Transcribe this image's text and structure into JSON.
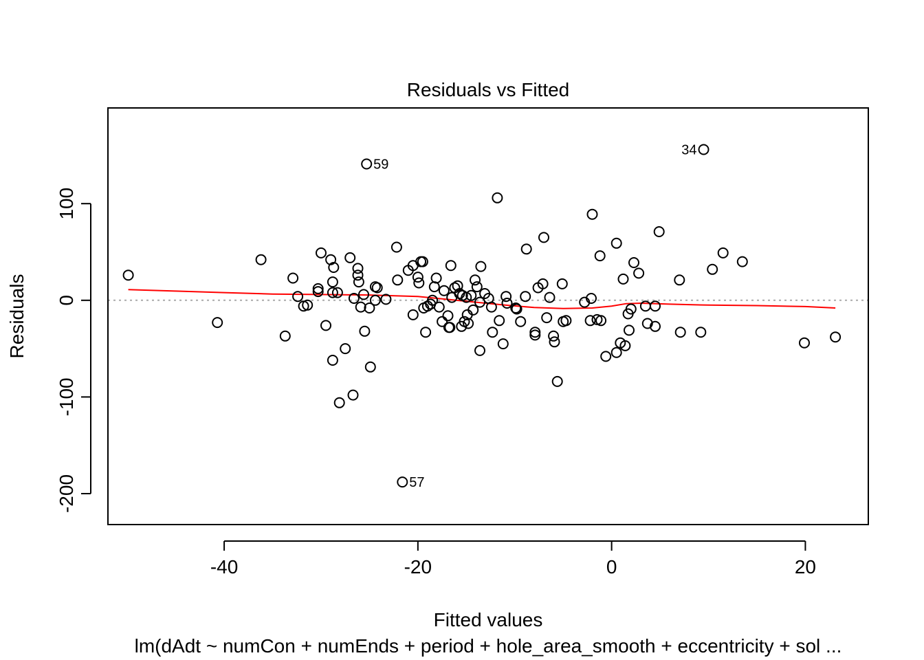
{
  "chart_data": {
    "type": "scatter",
    "title": "Residuals vs Fitted",
    "xlabel": "Fitted values",
    "ylabel": "Residuals",
    "subtitle": "lm(dAdt ~ numCon + numEnds + period + hole_area_smooth + eccentricity + sol ...",
    "xlim": [
      -52,
      26.5
    ],
    "ylim": [
      -232,
      199
    ],
    "x_ticks": [
      -40,
      -20,
      0,
      20
    ],
    "y_ticks": [
      -200,
      -100,
      0,
      100
    ],
    "x_tick_labels": [
      "-40",
      "-20",
      "0",
      "20"
    ],
    "y_tick_labels": [
      "-200",
      "-100",
      "0",
      "100"
    ],
    "reference_line": {
      "y": 0,
      "style": "dotted",
      "color": "#aaaaaa"
    },
    "smooth_color": "#ff0000",
    "point_color": "#000000",
    "points": [
      {
        "x": -49.9,
        "y": 26
      },
      {
        "x": -40.7,
        "y": -23
      },
      {
        "x": -36.2,
        "y": 42
      },
      {
        "x": -33.7,
        "y": -37
      },
      {
        "x": -32.9,
        "y": 23
      },
      {
        "x": -32.4,
        "y": 4
      },
      {
        "x": -31.8,
        "y": -6
      },
      {
        "x": -31.4,
        "y": -5
      },
      {
        "x": -30.3,
        "y": 12
      },
      {
        "x": -30.3,
        "y": 9
      },
      {
        "x": -30.0,
        "y": 49
      },
      {
        "x": -29.5,
        "y": -26
      },
      {
        "x": -29.0,
        "y": 42
      },
      {
        "x": -28.8,
        "y": 19
      },
      {
        "x": -28.7,
        "y": 34
      },
      {
        "x": -28.8,
        "y": 8
      },
      {
        "x": -28.3,
        "y": 8
      },
      {
        "x": -28.8,
        "y": -62
      },
      {
        "x": -28.1,
        "y": -106
      },
      {
        "x": -27.5,
        "y": -50
      },
      {
        "x": -27.0,
        "y": 44
      },
      {
        "x": -26.7,
        "y": -98
      },
      {
        "x": -26.6,
        "y": 2
      },
      {
        "x": -26.2,
        "y": 33
      },
      {
        "x": -26.2,
        "y": 26
      },
      {
        "x": -26.1,
        "y": 19
      },
      {
        "x": -25.9,
        "y": -7
      },
      {
        "x": -25.6,
        "y": 6
      },
      {
        "x": -25.5,
        "y": -32
      },
      {
        "x": -25.3,
        "y": 141
      },
      {
        "x": -25.0,
        "y": -8
      },
      {
        "x": -24.9,
        "y": -69
      },
      {
        "x": -24.4,
        "y": 14
      },
      {
        "x": -24.2,
        "y": 13
      },
      {
        "x": -24.4,
        "y": 0
      },
      {
        "x": -23.3,
        "y": 1
      },
      {
        "x": -22.2,
        "y": 55
      },
      {
        "x": -22.1,
        "y": 21
      },
      {
        "x": -21.6,
        "y": -188
      },
      {
        "x": -21.0,
        "y": 31
      },
      {
        "x": -20.5,
        "y": 36
      },
      {
        "x": -20.5,
        "y": -15
      },
      {
        "x": -20.0,
        "y": 24
      },
      {
        "x": -19.9,
        "y": 18
      },
      {
        "x": -19.7,
        "y": 40
      },
      {
        "x": -19.5,
        "y": 40
      },
      {
        "x": -19.4,
        "y": -8
      },
      {
        "x": -19.2,
        "y": -33
      },
      {
        "x": -19.0,
        "y": -6
      },
      {
        "x": -18.7,
        "y": -4
      },
      {
        "x": -18.5,
        "y": 0
      },
      {
        "x": -18.3,
        "y": 14
      },
      {
        "x": -18.1,
        "y": 23
      },
      {
        "x": -17.8,
        "y": -7
      },
      {
        "x": -17.5,
        "y": -22
      },
      {
        "x": -17.3,
        "y": 10
      },
      {
        "x": -16.9,
        "y": -16
      },
      {
        "x": -16.8,
        "y": -28
      },
      {
        "x": -16.7,
        "y": -28
      },
      {
        "x": -16.6,
        "y": 36
      },
      {
        "x": -16.5,
        "y": 3
      },
      {
        "x": -16.2,
        "y": 13
      },
      {
        "x": -15.9,
        "y": 15
      },
      {
        "x": -15.7,
        "y": 7
      },
      {
        "x": -15.5,
        "y": -27
      },
      {
        "x": -15.4,
        "y": 5
      },
      {
        "x": -15.2,
        "y": -22
      },
      {
        "x": -15.0,
        "y": 3
      },
      {
        "x": -14.9,
        "y": -15
      },
      {
        "x": -14.8,
        "y": -24
      },
      {
        "x": -14.5,
        "y": 5
      },
      {
        "x": -14.3,
        "y": -10
      },
      {
        "x": -14.1,
        "y": 21
      },
      {
        "x": -13.9,
        "y": 14
      },
      {
        "x": -13.6,
        "y": -2
      },
      {
        "x": -13.5,
        "y": 35
      },
      {
        "x": -13.6,
        "y": -52
      },
      {
        "x": -13.1,
        "y": 7
      },
      {
        "x": -12.7,
        "y": 2
      },
      {
        "x": -12.4,
        "y": -7
      },
      {
        "x": -12.3,
        "y": -33
      },
      {
        "x": -11.8,
        "y": 106
      },
      {
        "x": -11.6,
        "y": -21
      },
      {
        "x": -11.2,
        "y": -45
      },
      {
        "x": -10.9,
        "y": 4
      },
      {
        "x": -10.8,
        "y": -3
      },
      {
        "x": -9.9,
        "y": -8
      },
      {
        "x": -9.8,
        "y": -9
      },
      {
        "x": -9.4,
        "y": -22
      },
      {
        "x": -8.9,
        "y": 4
      },
      {
        "x": -8.8,
        "y": 53
      },
      {
        "x": -7.9,
        "y": -33
      },
      {
        "x": -7.9,
        "y": -36
      },
      {
        "x": -7.6,
        "y": 13
      },
      {
        "x": -7.1,
        "y": 17
      },
      {
        "x": -7.0,
        "y": 65
      },
      {
        "x": -6.7,
        "y": -18
      },
      {
        "x": -6.4,
        "y": 3
      },
      {
        "x": -6.0,
        "y": -37
      },
      {
        "x": -5.9,
        "y": -43
      },
      {
        "x": -5.6,
        "y": -84
      },
      {
        "x": -5.1,
        "y": 17
      },
      {
        "x": -5.0,
        "y": -22
      },
      {
        "x": -4.7,
        "y": -21
      },
      {
        "x": -2.8,
        "y": -2
      },
      {
        "x": -2.2,
        "y": -21
      },
      {
        "x": -2.1,
        "y": 2
      },
      {
        "x": -2.0,
        "y": 89
      },
      {
        "x": -1.5,
        "y": -20
      },
      {
        "x": -1.2,
        "y": 46
      },
      {
        "x": -1.1,
        "y": -21
      },
      {
        "x": -0.6,
        "y": -58
      },
      {
        "x": 0.5,
        "y": 59
      },
      {
        "x": 0.5,
        "y": -54
      },
      {
        "x": 0.9,
        "y": -44
      },
      {
        "x": 1.2,
        "y": 22
      },
      {
        "x": 1.4,
        "y": -47
      },
      {
        "x": 1.7,
        "y": -14
      },
      {
        "x": 1.8,
        "y": -31
      },
      {
        "x": 2.0,
        "y": -9
      },
      {
        "x": 2.3,
        "y": 39
      },
      {
        "x": 2.8,
        "y": 28
      },
      {
        "x": 3.5,
        "y": -6
      },
      {
        "x": 3.7,
        "y": -24
      },
      {
        "x": 4.5,
        "y": -6
      },
      {
        "x": 4.5,
        "y": -27
      },
      {
        "x": 4.9,
        "y": 71
      },
      {
        "x": 7.0,
        "y": 21
      },
      {
        "x": 7.1,
        "y": -33
      },
      {
        "x": 9.2,
        "y": -33
      },
      {
        "x": 9.5,
        "y": 156
      },
      {
        "x": 10.4,
        "y": 32
      },
      {
        "x": 11.5,
        "y": 49
      },
      {
        "x": 13.5,
        "y": 40
      },
      {
        "x": 19.9,
        "y": -44
      },
      {
        "x": 23.1,
        "y": -38
      }
    ],
    "labeled_points": [
      {
        "label": "59",
        "x": -25.3,
        "y": 141,
        "side": "right"
      },
      {
        "label": "57",
        "x": -21.6,
        "y": -188,
        "side": "right"
      },
      {
        "label": "34",
        "x": 9.5,
        "y": 156,
        "side": "left"
      }
    ],
    "smooth_line": [
      {
        "x": -49.9,
        "y": 11
      },
      {
        "x": -45,
        "y": 9.5
      },
      {
        "x": -40,
        "y": 8
      },
      {
        "x": -35,
        "y": 6.5
      },
      {
        "x": -30,
        "y": 6
      },
      {
        "x": -25,
        "y": 5.5
      },
      {
        "x": -20,
        "y": 4
      },
      {
        "x": -17,
        "y": 1
      },
      {
        "x": -14,
        "y": -2
      },
      {
        "x": -11,
        "y": -5
      },
      {
        "x": -8,
        "y": -7.5
      },
      {
        "x": -5,
        "y": -8.5
      },
      {
        "x": -2,
        "y": -8
      },
      {
        "x": 0,
        "y": -6
      },
      {
        "x": 1.5,
        "y": -3.5
      },
      {
        "x": 3,
        "y": -3
      },
      {
        "x": 6,
        "y": -4
      },
      {
        "x": 10,
        "y": -5
      },
      {
        "x": 15,
        "y": -5.5
      },
      {
        "x": 20,
        "y": -6.5
      },
      {
        "x": 23.1,
        "y": -8
      }
    ]
  }
}
